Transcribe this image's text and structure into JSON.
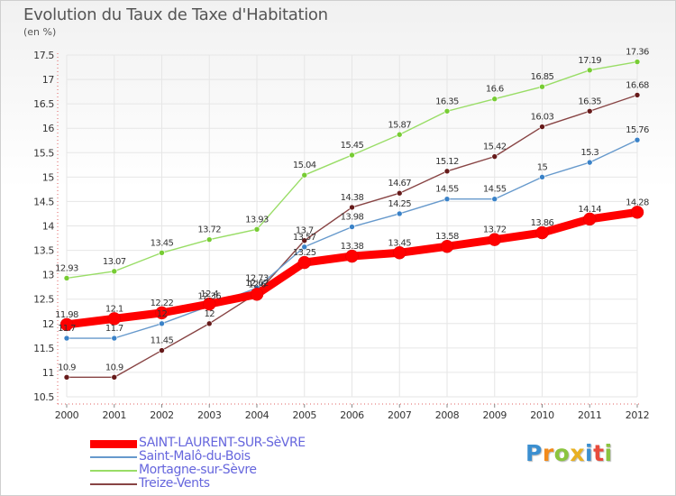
{
  "title": "Evolution du Taux de Taxe d'Habitation",
  "unit": "(en %)",
  "brand": {
    "letters": [
      "P",
      "r",
      "o",
      "x",
      "i",
      "t",
      "i"
    ],
    "colors": [
      "#3b8fd0",
      "#f28a1a",
      "#8bc43f",
      "#e8b020",
      "#3b8fd0",
      "#e84b3c",
      "#8bc43f"
    ]
  },
  "chart_data": {
    "type": "line",
    "x": [
      "2000",
      "2001",
      "2002",
      "2003",
      "2004",
      "2005",
      "2006",
      "2007",
      "2008",
      "2009",
      "2010",
      "2011",
      "2012"
    ],
    "ylim": [
      10.5,
      17.5
    ],
    "yticks": [
      "10.5",
      "11",
      "11.5",
      "12",
      "12.5",
      "13",
      "13.5",
      "14",
      "14.5",
      "15",
      "15.5",
      "16",
      "16.5",
      "17",
      "17.5"
    ],
    "grid": true,
    "legend_position": "bottom",
    "series": [
      {
        "name": "SAINT-LAURENT-SUR-SèVRE",
        "color": "#ff0000",
        "marker_color": "#ff0000",
        "values": [
          11.98,
          12.1,
          12.22,
          12.4,
          12.6,
          13.25,
          13.38,
          13.45,
          13.58,
          13.72,
          13.86,
          14.14,
          14.28
        ],
        "labels": [
          "11.98",
          "12.1",
          "12.22",
          "12.4",
          "12.6",
          "13.25",
          "13.38",
          "13.45",
          "13.58",
          "13.72",
          "13.86",
          "14.14",
          "14.28"
        ]
      },
      {
        "name": "Saint-Malô-du-Bois",
        "color": "#6699cc",
        "marker_color": "#3a82c8",
        "values": [
          11.7,
          11.7,
          12.0,
          12.36,
          12.73,
          13.57,
          13.98,
          14.25,
          14.55,
          14.55,
          15.0,
          15.3,
          15.76
        ],
        "labels": [
          "11.7",
          "11.7",
          "12",
          "12.36",
          "12.73",
          "13.57",
          "13.98",
          "14.25",
          "14.55",
          "14.55",
          "15",
          "15.3",
          "15.76"
        ]
      },
      {
        "name": "Mortagne-sur-Sèvre",
        "color": "#99dd66",
        "marker_color": "#77cc33",
        "values": [
          12.93,
          13.07,
          13.45,
          13.72,
          13.93,
          15.04,
          15.45,
          15.87,
          16.35,
          16.6,
          16.85,
          17.19,
          17.36
        ],
        "labels": [
          "12.93",
          "13.07",
          "13.45",
          "13.72",
          "13.93",
          "15.04",
          "15.45",
          "15.87",
          "16.35",
          "16.6",
          "16.85",
          "17.19",
          "17.36"
        ]
      },
      {
        "name": "Treize-Vents",
        "color": "#884444",
        "marker_color": "#661a1a",
        "values": [
          10.9,
          10.9,
          11.45,
          12.0,
          12.62,
          13.7,
          14.38,
          14.67,
          15.12,
          15.42,
          16.03,
          16.35,
          16.68
        ],
        "labels": [
          "10.9",
          "10.9",
          "11.45",
          "12",
          "12.62",
          "13.7",
          "14.38",
          "14.67",
          "15.12",
          "15.42",
          "16.03",
          "16.35",
          "16.68"
        ]
      }
    ]
  }
}
